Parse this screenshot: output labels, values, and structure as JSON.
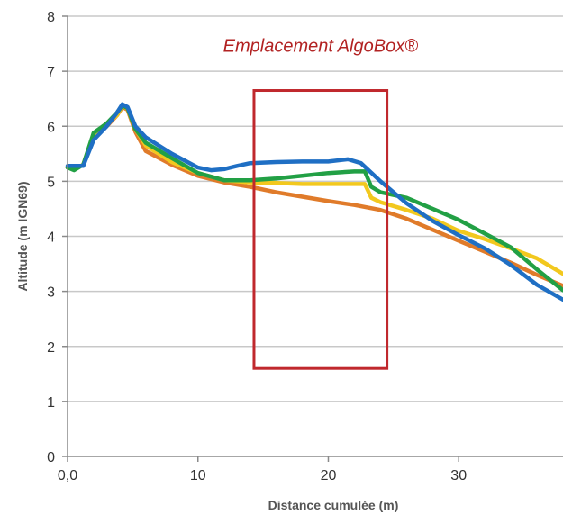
{
  "chart_data": {
    "type": "line",
    "xlabel": "Distance cumulée (m)",
    "ylabel": "Altitude (m IGN69)",
    "xlim": [
      0,
      38
    ],
    "ylim": [
      0,
      8
    ],
    "x_ticks": [
      0,
      10,
      20,
      30
    ],
    "x_tick_labels": [
      "0,0",
      "10",
      "20",
      "30"
    ],
    "y_ticks": [
      0,
      1,
      2,
      3,
      4,
      5,
      6,
      7,
      8
    ],
    "y_tick_labels": [
      "0",
      "1",
      "2",
      "3",
      "4",
      "5",
      "6",
      "7",
      "8"
    ],
    "grid": "horizontal",
    "series": [
      {
        "color": "#E07B2A",
        "points": [
          [
            0,
            5.25
          ],
          [
            0.5,
            5.22
          ],
          [
            1.2,
            5.3
          ],
          [
            2,
            5.8
          ],
          [
            3,
            6.0
          ],
          [
            3.8,
            6.2
          ],
          [
            4.2,
            6.35
          ],
          [
            4.6,
            6.3
          ],
          [
            5.2,
            5.9
          ],
          [
            6,
            5.55
          ],
          [
            8,
            5.3
          ],
          [
            10,
            5.1
          ],
          [
            12,
            4.98
          ],
          [
            14,
            4.9
          ],
          [
            16,
            4.8
          ],
          [
            18,
            4.72
          ],
          [
            20,
            4.64
          ],
          [
            22,
            4.57
          ],
          [
            24,
            4.48
          ],
          [
            26,
            4.32
          ],
          [
            28,
            4.12
          ],
          [
            30,
            3.92
          ],
          [
            32,
            3.72
          ],
          [
            34,
            3.52
          ],
          [
            36,
            3.3
          ],
          [
            38,
            3.1
          ]
        ]
      },
      {
        "color": "#F2C81E",
        "points": [
          [
            0,
            5.25
          ],
          [
            0.5,
            5.22
          ],
          [
            1.2,
            5.3
          ],
          [
            2,
            5.85
          ],
          [
            3,
            6.05
          ],
          [
            3.8,
            6.2
          ],
          [
            4.2,
            6.38
          ],
          [
            4.6,
            6.32
          ],
          [
            5.2,
            5.95
          ],
          [
            6,
            5.65
          ],
          [
            8,
            5.35
          ],
          [
            10,
            5.15
          ],
          [
            12,
            5.02
          ],
          [
            14,
            4.98
          ],
          [
            16,
            4.97
          ],
          [
            18,
            4.95
          ],
          [
            20,
            4.95
          ],
          [
            22,
            4.95
          ],
          [
            22.8,
            4.95
          ],
          [
            23.3,
            4.7
          ],
          [
            24,
            4.62
          ],
          [
            26,
            4.48
          ],
          [
            28,
            4.32
          ],
          [
            30,
            4.1
          ],
          [
            32,
            3.95
          ],
          [
            34,
            3.78
          ],
          [
            36,
            3.6
          ],
          [
            38,
            3.32
          ]
        ]
      },
      {
        "color": "#22A045",
        "points": [
          [
            0,
            5.25
          ],
          [
            0.5,
            5.2
          ],
          [
            1.2,
            5.3
          ],
          [
            2,
            5.88
          ],
          [
            3,
            6.05
          ],
          [
            3.8,
            6.25
          ],
          [
            4.2,
            6.38
          ],
          [
            4.6,
            6.33
          ],
          [
            5.2,
            5.95
          ],
          [
            6,
            5.7
          ],
          [
            8,
            5.42
          ],
          [
            10,
            5.15
          ],
          [
            12,
            5.02
          ],
          [
            14,
            5.02
          ],
          [
            16,
            5.05
          ],
          [
            18,
            5.1
          ],
          [
            20,
            5.15
          ],
          [
            22,
            5.18
          ],
          [
            22.8,
            5.18
          ],
          [
            23.3,
            4.9
          ],
          [
            24,
            4.8
          ],
          [
            26,
            4.7
          ],
          [
            28,
            4.5
          ],
          [
            30,
            4.3
          ],
          [
            32,
            4.05
          ],
          [
            34,
            3.8
          ],
          [
            36,
            3.4
          ],
          [
            38,
            3.02
          ]
        ]
      },
      {
        "color": "#1F6FC4",
        "points": [
          [
            0,
            5.28
          ],
          [
            0.5,
            5.28
          ],
          [
            1.2,
            5.28
          ],
          [
            2,
            5.75
          ],
          [
            3,
            6.0
          ],
          [
            3.8,
            6.25
          ],
          [
            4.2,
            6.4
          ],
          [
            4.6,
            6.35
          ],
          [
            5.2,
            6.0
          ],
          [
            6,
            5.8
          ],
          [
            8,
            5.5
          ],
          [
            10,
            5.25
          ],
          [
            11,
            5.2
          ],
          [
            12,
            5.22
          ],
          [
            13,
            5.28
          ],
          [
            14,
            5.33
          ],
          [
            16,
            5.35
          ],
          [
            18,
            5.36
          ],
          [
            20,
            5.36
          ],
          [
            21.5,
            5.4
          ],
          [
            22.5,
            5.33
          ],
          [
            24,
            5.0
          ],
          [
            26,
            4.6
          ],
          [
            28,
            4.28
          ],
          [
            30,
            4.02
          ],
          [
            32,
            3.78
          ],
          [
            34,
            3.48
          ],
          [
            36,
            3.12
          ],
          [
            38,
            2.85
          ]
        ]
      }
    ],
    "annotations": {
      "label": "Emplacement AlgoBox®",
      "label_color": "#B22222",
      "box_color": "#C0282D",
      "box_x": [
        14.3,
        24.5
      ],
      "box_y": [
        1.6,
        6.65
      ],
      "label_x": 19.4,
      "label_y": 7.35
    }
  }
}
